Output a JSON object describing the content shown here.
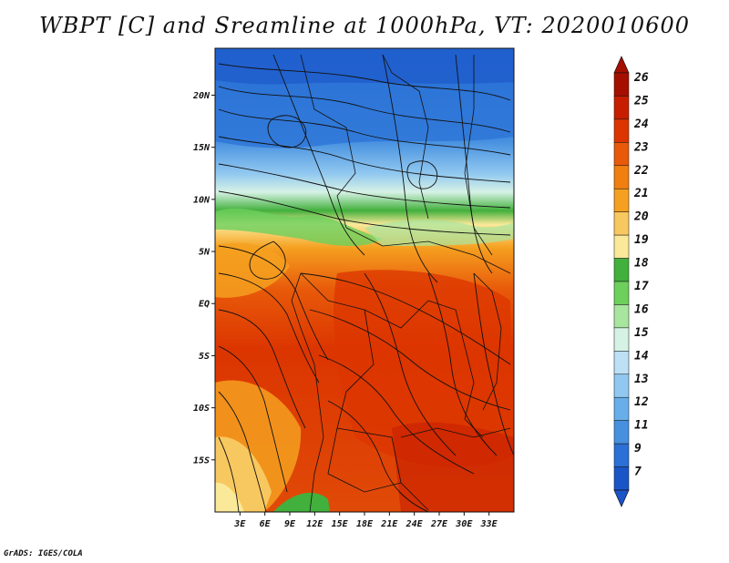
{
  "title": "WBPT [C] and Sreamline at 1000hPa, VT: 2020010600",
  "credit": "GrADS: IGES/COLA",
  "map": {
    "lat_range": [
      -20,
      24.5
    ],
    "lon_range": [
      0,
      36
    ],
    "lat_ticks": [
      {
        "value": 20,
        "label": "20N"
      },
      {
        "value": 15,
        "label": "15N"
      },
      {
        "value": 10,
        "label": "10N"
      },
      {
        "value": 5,
        "label": "5N"
      },
      {
        "value": 0,
        "label": "EQ"
      },
      {
        "value": -5,
        "label": "5S"
      },
      {
        "value": -10,
        "label": "10S"
      },
      {
        "value": -15,
        "label": "15S"
      }
    ],
    "lon_ticks": [
      {
        "value": 3,
        "label": "3E"
      },
      {
        "value": 6,
        "label": "6E"
      },
      {
        "value": 9,
        "label": "9E"
      },
      {
        "value": 12,
        "label": "12E"
      },
      {
        "value": 15,
        "label": "15E"
      },
      {
        "value": 18,
        "label": "18E"
      },
      {
        "value": 21,
        "label": "21E"
      },
      {
        "value": 24,
        "label": "24E"
      },
      {
        "value": 27,
        "label": "27E"
      },
      {
        "value": 30,
        "label": "30E"
      },
      {
        "value": 33,
        "label": "33E"
      }
    ]
  },
  "colorbar": {
    "labels": [
      "26",
      "25",
      "24",
      "23",
      "22",
      "21",
      "20",
      "19",
      "18",
      "17",
      "16",
      "15",
      "14",
      "13",
      "12",
      "11",
      "9",
      "7"
    ],
    "colors": [
      "#a50f00",
      "#c81e00",
      "#dc3500",
      "#e85a0a",
      "#f07f10",
      "#f5a020",
      "#f8c860",
      "#fbe99a",
      "#42b03c",
      "#6dcf5c",
      "#a8e6a0",
      "#d6f2e6",
      "#bde0f5",
      "#91c8f0",
      "#68aeea",
      "#4690e0",
      "#2a70d6",
      "#1a55c8"
    ]
  }
}
